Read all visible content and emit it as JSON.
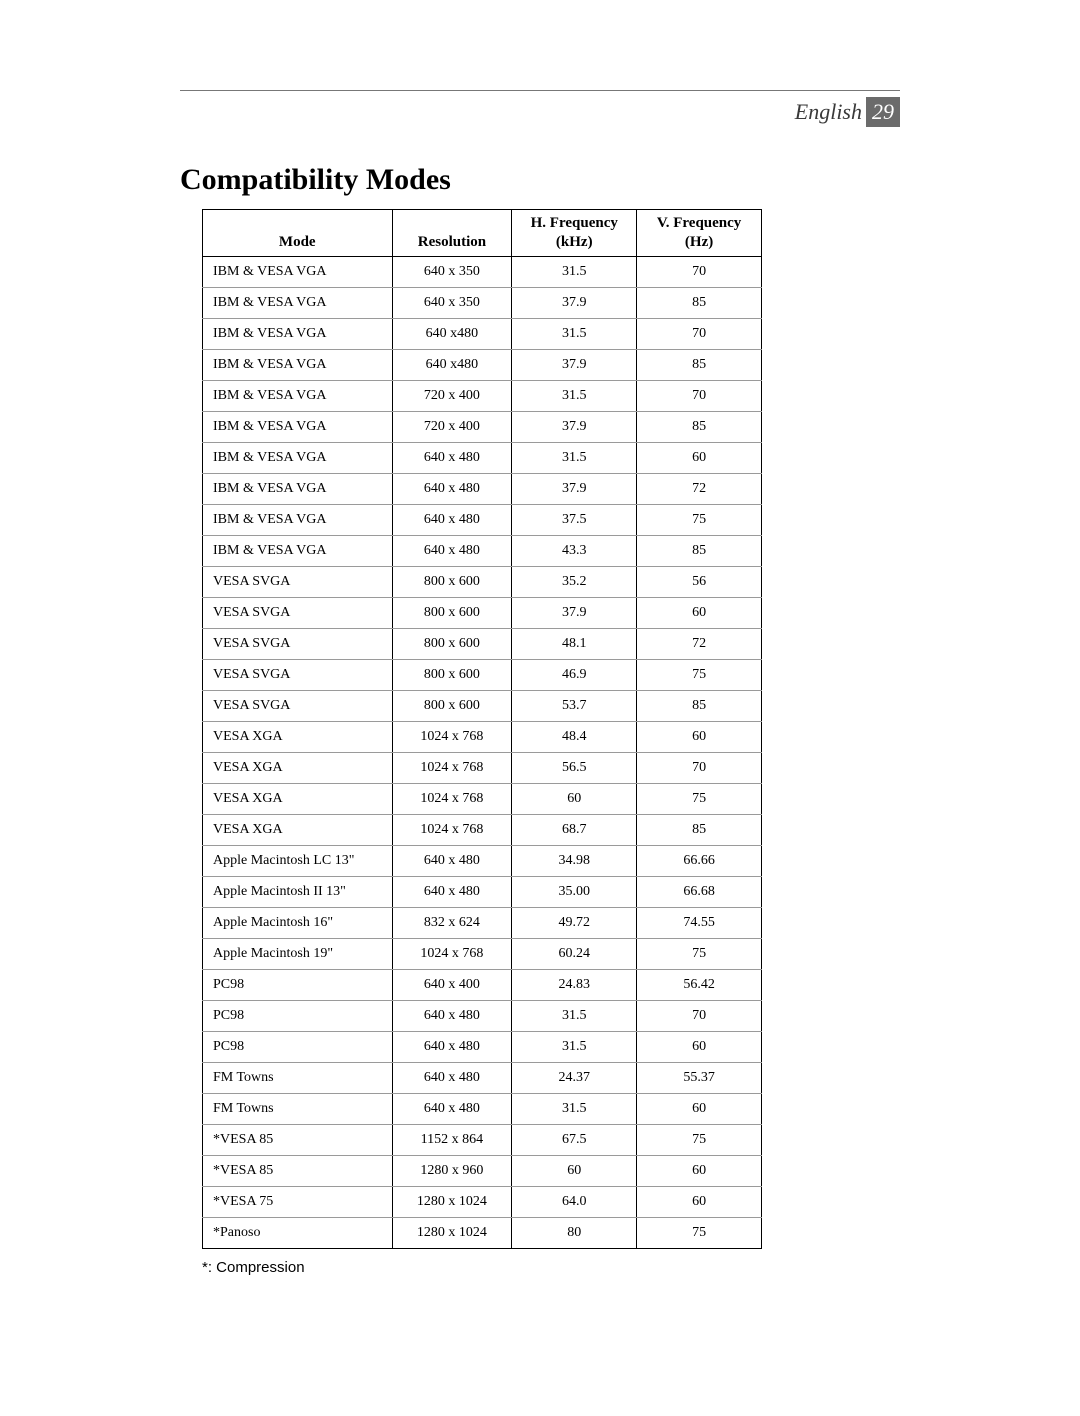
{
  "header": {
    "language": "English",
    "page_number": "29"
  },
  "title": "Compatibility Modes",
  "table": {
    "columns": {
      "mode": "Mode",
      "resolution": "Resolution",
      "hfreq_line1": "H. Frequency",
      "hfreq_line2": "(kHz)",
      "vfreq_line1": "V. Frequency",
      "vfreq_line2": "(Hz)"
    },
    "rows": [
      {
        "mode": "IBM & VESA VGA",
        "resolution": "640 x 350",
        "hfreq": "31.5",
        "vfreq": "70"
      },
      {
        "mode": "IBM & VESA VGA",
        "resolution": "640 x 350",
        "hfreq": "37.9",
        "vfreq": "85"
      },
      {
        "mode": "IBM & VESA VGA",
        "resolution": "640 x480",
        "hfreq": "31.5",
        "vfreq": "70"
      },
      {
        "mode": "IBM & VESA VGA",
        "resolution": "640 x480",
        "hfreq": "37.9",
        "vfreq": "85"
      },
      {
        "mode": "IBM & VESA VGA",
        "resolution": "720 x 400",
        "hfreq": "31.5",
        "vfreq": "70"
      },
      {
        "mode": "IBM & VESA VGA",
        "resolution": "720 x 400",
        "hfreq": "37.9",
        "vfreq": "85"
      },
      {
        "mode": "IBM & VESA VGA",
        "resolution": "640 x 480",
        "hfreq": "31.5",
        "vfreq": "60"
      },
      {
        "mode": "IBM & VESA VGA",
        "resolution": "640 x 480",
        "hfreq": "37.9",
        "vfreq": "72"
      },
      {
        "mode": "IBM & VESA VGA",
        "resolution": "640 x 480",
        "hfreq": "37.5",
        "vfreq": "75"
      },
      {
        "mode": "IBM & VESA VGA",
        "resolution": "640 x 480",
        "hfreq": "43.3",
        "vfreq": "85"
      },
      {
        "mode": "VESA SVGA",
        "resolution": "800 x 600",
        "hfreq": "35.2",
        "vfreq": "56"
      },
      {
        "mode": "VESA SVGA",
        "resolution": "800 x 600",
        "hfreq": "37.9",
        "vfreq": "60"
      },
      {
        "mode": "VESA SVGA",
        "resolution": "800 x 600",
        "hfreq": "48.1",
        "vfreq": "72"
      },
      {
        "mode": "VESA SVGA",
        "resolution": "800 x 600",
        "hfreq": "46.9",
        "vfreq": "75"
      },
      {
        "mode": "VESA SVGA",
        "resolution": "800 x 600",
        "hfreq": "53.7",
        "vfreq": "85"
      },
      {
        "mode": "VESA XGA",
        "resolution": "1024 x 768",
        "hfreq": "48.4",
        "vfreq": "60"
      },
      {
        "mode": "VESA XGA",
        "resolution": "1024 x 768",
        "hfreq": "56.5",
        "vfreq": "70"
      },
      {
        "mode": "VESA XGA",
        "resolution": "1024 x 768",
        "hfreq": "60",
        "vfreq": "75"
      },
      {
        "mode": "VESA XGA",
        "resolution": "1024 x 768",
        "hfreq": "68.7",
        "vfreq": "85"
      },
      {
        "mode": "Apple Macintosh LC 13\"",
        "resolution": "640 x 480",
        "hfreq": "34.98",
        "vfreq": "66.66"
      },
      {
        "mode": "Apple Macintosh II 13\"",
        "resolution": "640 x 480",
        "hfreq": "35.00",
        "vfreq": "66.68"
      },
      {
        "mode": "Apple Macintosh 16\"",
        "resolution": "832 x 624",
        "hfreq": "49.72",
        "vfreq": "74.55"
      },
      {
        "mode": "Apple Macintosh 19\"",
        "resolution": "1024 x 768",
        "hfreq": "60.24",
        "vfreq": "75"
      },
      {
        "mode": "PC98",
        "resolution": "640 x 400",
        "hfreq": "24.83",
        "vfreq": "56.42"
      },
      {
        "mode": "PC98",
        "resolution": "640 x 480",
        "hfreq": "31.5",
        "vfreq": "70"
      },
      {
        "mode": "PC98",
        "resolution": "640 x 480",
        "hfreq": "31.5",
        "vfreq": "60"
      },
      {
        "mode": "FM Towns",
        "resolution": "640 x 480",
        "hfreq": "24.37",
        "vfreq": "55.37"
      },
      {
        "mode": "FM Towns",
        "resolution": "640 x 480",
        "hfreq": "31.5",
        "vfreq": "60"
      },
      {
        "mode": "*VESA 85",
        "resolution": "1152 x 864",
        "hfreq": "67.5",
        "vfreq": "75"
      },
      {
        "mode": "*VESA 85",
        "resolution": "1280 x 960",
        "hfreq": "60",
        "vfreq": "60"
      },
      {
        "mode": "*VESA 75",
        "resolution": "1280 x 1024",
        "hfreq": "64.0",
        "vfreq": "60"
      },
      {
        "mode": "*Panoso",
        "resolution": "1280 x 1024",
        "hfreq": "80",
        "vfreq": "75"
      }
    ]
  },
  "footnote": "*: Compression"
}
